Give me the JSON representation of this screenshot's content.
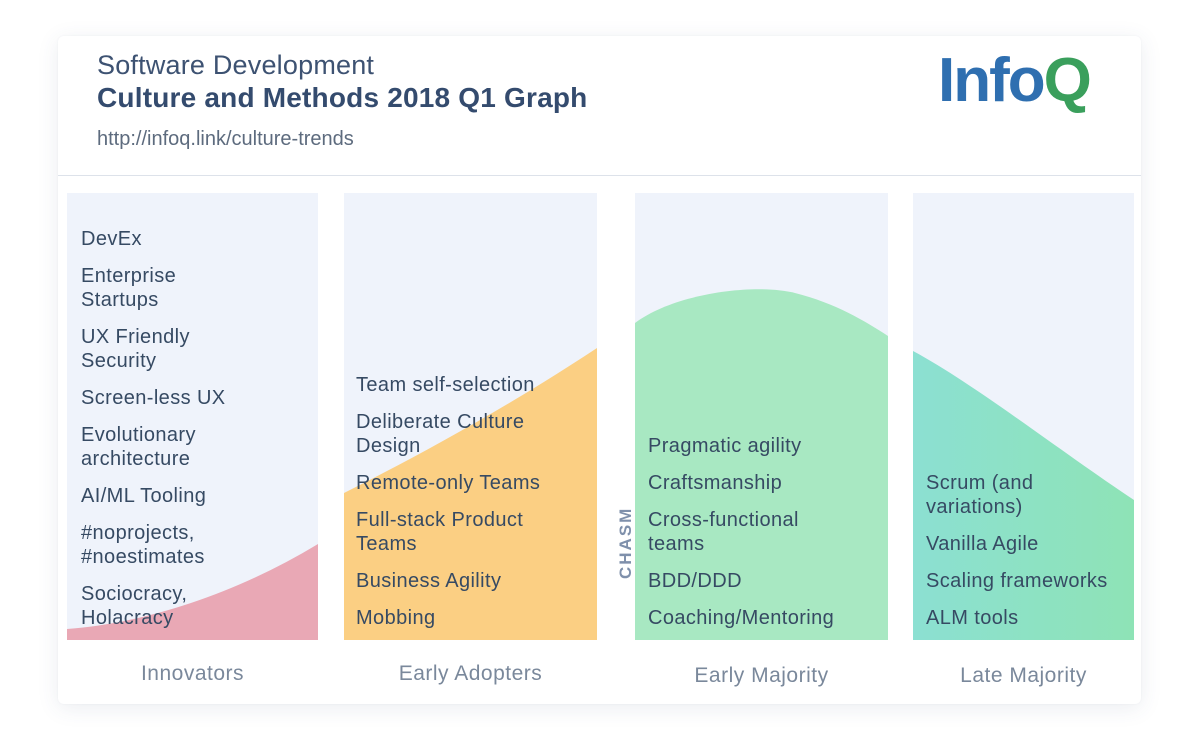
{
  "header": {
    "title_line1": "Software Development",
    "title_line2": "Culture and Methods 2018 Q1 Graph",
    "url": "http://infoq.link/culture-trends",
    "logo_info": "Info",
    "logo_q": "Q"
  },
  "chasm_label": "CHASM",
  "colors": {
    "innovators": "#e9a8b5",
    "early_adopters": "#fbcf83",
    "early_majority": "#a8e8c2",
    "late_majority_from": "#8ce0d2",
    "late_majority_to": "#8ee3b6",
    "column_bg": "#eff3fb",
    "text": "#364a63"
  },
  "columns": [
    {
      "label": "Innovators",
      "items": [
        "DevEx",
        "Enterprise Startups",
        "UX Friendly Security",
        "Screen-less UX",
        "Evolutionary architecture",
        "AI/ML Tooling",
        "#noprojects, #noestimates",
        "Sociocracy, Holacracy"
      ]
    },
    {
      "label": "Early Adopters",
      "items": [
        "Team self-selection",
        "Deliberate Culture Design",
        "Remote-only Teams",
        "Full-stack Product Teams",
        "Business Agility",
        "Mobbing"
      ]
    },
    {
      "label": "Early Majority",
      "items": [
        "Pragmatic agility",
        "Craftsmanship",
        "Cross-functional teams",
        "BDD/DDD",
        "Coaching/Mentoring"
      ]
    },
    {
      "label": "Late Majority",
      "items": [
        "Scrum (and variations)",
        "Vanilla Agile",
        "Scaling frameworks",
        "ALM tools"
      ]
    }
  ]
}
